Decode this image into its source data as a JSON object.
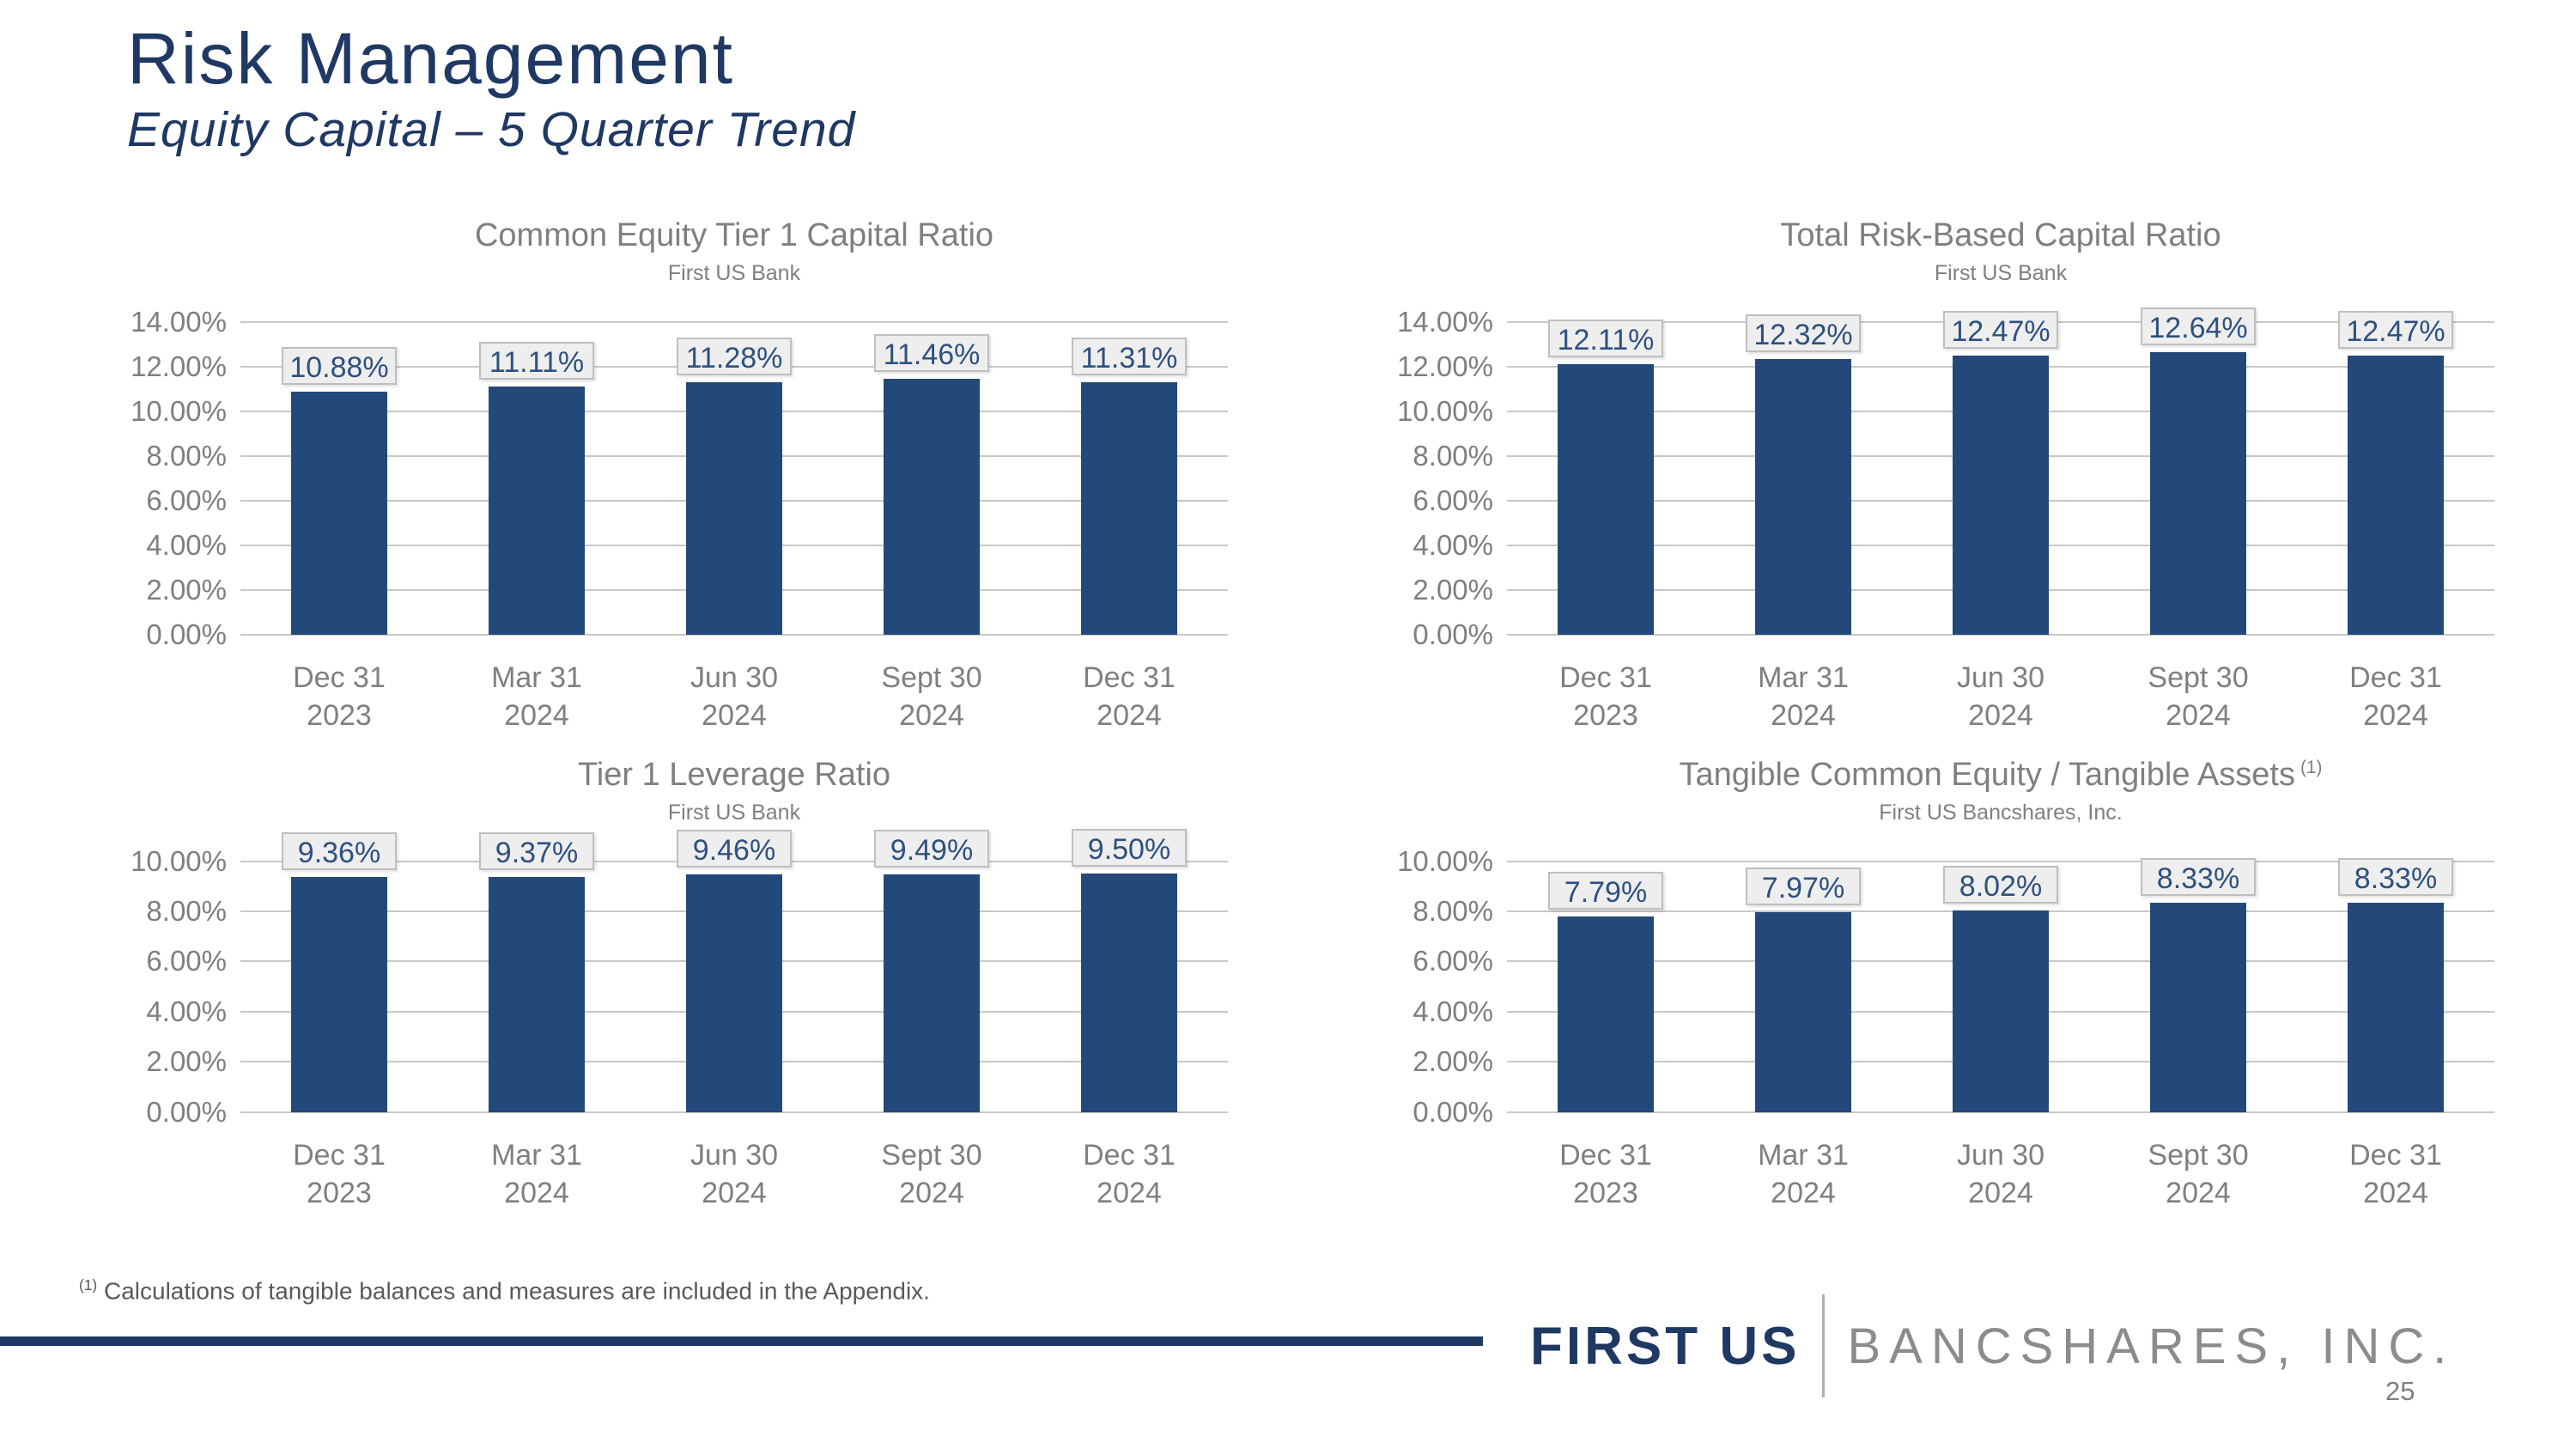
{
  "slide": {
    "title": "Risk Management",
    "subtitle": "Equity Capital – 5 Quarter Trend"
  },
  "footnote": {
    "marker": "(1)",
    "text": " Calculations of tangible balances and measures are included in the Appendix."
  },
  "footer": {
    "logo_primary": "FIRST US",
    "logo_secondary": "BANCSHARES, INC.",
    "page_number": "25"
  },
  "colors": {
    "navy": "#1F3864",
    "bar": "#23497A",
    "chart_text": "#7F7F7F",
    "label_text": "#2E5180",
    "label_box_bg": "#EEEEEE",
    "label_box_border": "#BFBFBF",
    "gridline": "#C8C8C8",
    "footnote_text": "#595959",
    "logo_gray": "#8C8C8C"
  },
  "chart_data": [
    {
      "type": "bar",
      "title": "Common Equity Tier 1 Capital Ratio",
      "subtitle": "First US Bank",
      "categories": [
        [
          "Dec 31",
          "2023"
        ],
        [
          "Mar 31",
          "2024"
        ],
        [
          "Jun 30",
          "2024"
        ],
        [
          "Sept 30",
          "2024"
        ],
        [
          "Dec 31",
          "2024"
        ]
      ],
      "values": [
        10.88,
        11.11,
        11.28,
        11.46,
        11.31
      ],
      "labels": [
        "10.88%",
        "11.11%",
        "11.28%",
        "11.46%",
        "11.31%"
      ],
      "ylim": [
        0,
        14
      ],
      "yticks": [
        "14.00%",
        "12.00%",
        "10.00%",
        "8.00%",
        "6.00%",
        "4.00%",
        "2.00%",
        "0.00%"
      ],
      "grid": true,
      "legend": "none"
    },
    {
      "type": "bar",
      "title": "Total Risk-Based Capital Ratio",
      "subtitle": "First US Bank",
      "categories": [
        [
          "Dec 31",
          "2023"
        ],
        [
          "Mar 31",
          "2024"
        ],
        [
          "Jun 30",
          "2024"
        ],
        [
          "Sept 30",
          "2024"
        ],
        [
          "Dec 31",
          "2024"
        ]
      ],
      "values": [
        12.11,
        12.32,
        12.47,
        12.64,
        12.47
      ],
      "labels": [
        "12.11%",
        "12.32%",
        "12.47%",
        "12.64%",
        "12.47%"
      ],
      "ylim": [
        0,
        14
      ],
      "yticks": [
        "14.00%",
        "12.00%",
        "10.00%",
        "8.00%",
        "6.00%",
        "4.00%",
        "2.00%",
        "0.00%"
      ],
      "grid": true,
      "legend": "none"
    },
    {
      "type": "bar",
      "title": "Tier 1 Leverage Ratio",
      "subtitle": "First US Bank",
      "categories": [
        [
          "Dec 31",
          "2023"
        ],
        [
          "Mar 31",
          "2024"
        ],
        [
          "Jun 30",
          "2024"
        ],
        [
          "Sept 30",
          "2024"
        ],
        [
          "Dec 31",
          "2024"
        ]
      ],
      "values": [
        9.36,
        9.37,
        9.46,
        9.49,
        9.5
      ],
      "labels": [
        "9.36%",
        "9.37%",
        "9.46%",
        "9.49%",
        "9.50%"
      ],
      "ylim": [
        0,
        10
      ],
      "yticks": [
        "10.00%",
        "8.00%",
        "6.00%",
        "4.00%",
        "2.00%",
        "0.00%"
      ],
      "grid": true,
      "legend": "none"
    },
    {
      "type": "bar",
      "title": "Tangible Common Equity / Tangible Assets",
      "title_sup": "(1)",
      "subtitle": "First US Bancshares, Inc.",
      "categories": [
        [
          "Dec 31",
          "2023"
        ],
        [
          "Mar 31",
          "2024"
        ],
        [
          "Jun 30",
          "2024"
        ],
        [
          "Sept 30",
          "2024"
        ],
        [
          "Dec 31",
          "2024"
        ]
      ],
      "values": [
        7.79,
        7.97,
        8.02,
        8.33,
        8.33
      ],
      "labels": [
        "7.79%",
        "7.97%",
        "8.02%",
        "8.33%",
        "8.33%"
      ],
      "ylim": [
        0,
        10
      ],
      "yticks": [
        "10.00%",
        "8.00%",
        "6.00%",
        "4.00%",
        "2.00%",
        "0.00%"
      ],
      "grid": true,
      "legend": "none"
    }
  ]
}
